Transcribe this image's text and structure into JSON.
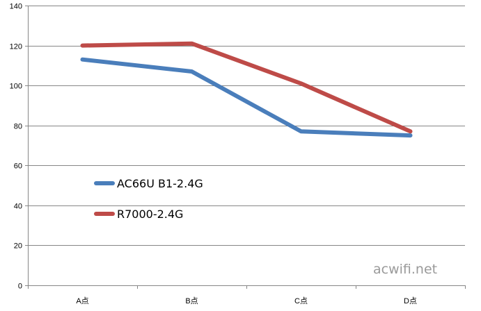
{
  "chart_data": {
    "type": "line",
    "categories": [
      "A点",
      "B点",
      "C点",
      "D点"
    ],
    "series": [
      {
        "name": "AC66U B1-2.4G",
        "values": [
          113,
          107,
          77,
          75
        ],
        "color": "#4a7ebb"
      },
      {
        "name": "R7000-2.4G",
        "values": [
          120,
          121,
          101,
          77
        ],
        "color": "#be4b48"
      }
    ],
    "y_ticks": [
      "0",
      "20",
      "40",
      "60",
      "80",
      "100",
      "120",
      "140"
    ],
    "ylim": [
      0,
      140
    ],
    "grid": true,
    "legend_position": "inside-left",
    "title": "",
    "xlabel": "",
    "ylabel": ""
  },
  "watermark": "acwifi.net",
  "colors": {
    "gridline": "#868686",
    "axis": "#868686"
  }
}
